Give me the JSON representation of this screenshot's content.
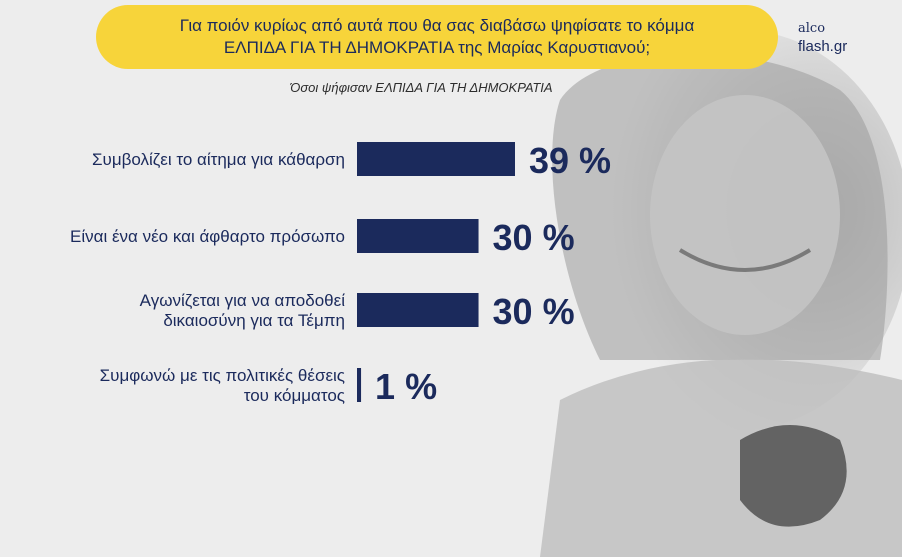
{
  "header": {
    "question_line1": "Για ποιόν κυρίως από αυτά που θα σας διαβάσω ψηφίσατε το κόμμα",
    "question_line2": "ΕΛΠΙΔΑ ΓΙΑ ΤΗ ΔΗΜΟΚΡΑΤΙΑ της Μαρίας Καρυστιανού;",
    "subtitle": "Όσοι ψήφισαν ΕΛΠΙΔΑ ΓΙΑ ΤΗ ΔΗΜΟΚΡΑΤΙΑ"
  },
  "logo": {
    "line1": "alco",
    "line2": "flash.gr"
  },
  "colors": {
    "bar": "#1b2a5c",
    "banner": "#f7d43a",
    "text": "#1b2a5c"
  },
  "chart_data": {
    "type": "bar",
    "orientation": "horizontal",
    "categories": [
      [
        "Συμβολίζει το αίτημα για κάθαρση"
      ],
      [
        "Είναι ένα νέο και άφθαρτο πρόσωπο"
      ],
      [
        "Αγωνίζεται για να αποδοθεί",
        "δικαιοσύνη για τα Τέμπη"
      ],
      [
        "Συμφωνώ με τις πολιτικές θέσεις",
        "του κόμματος"
      ]
    ],
    "values": [
      39,
      30,
      30,
      1
    ],
    "value_labels": [
      "39 %",
      "30 %",
      "30 %",
      "1 %"
    ],
    "xlim": [
      0,
      39
    ]
  }
}
